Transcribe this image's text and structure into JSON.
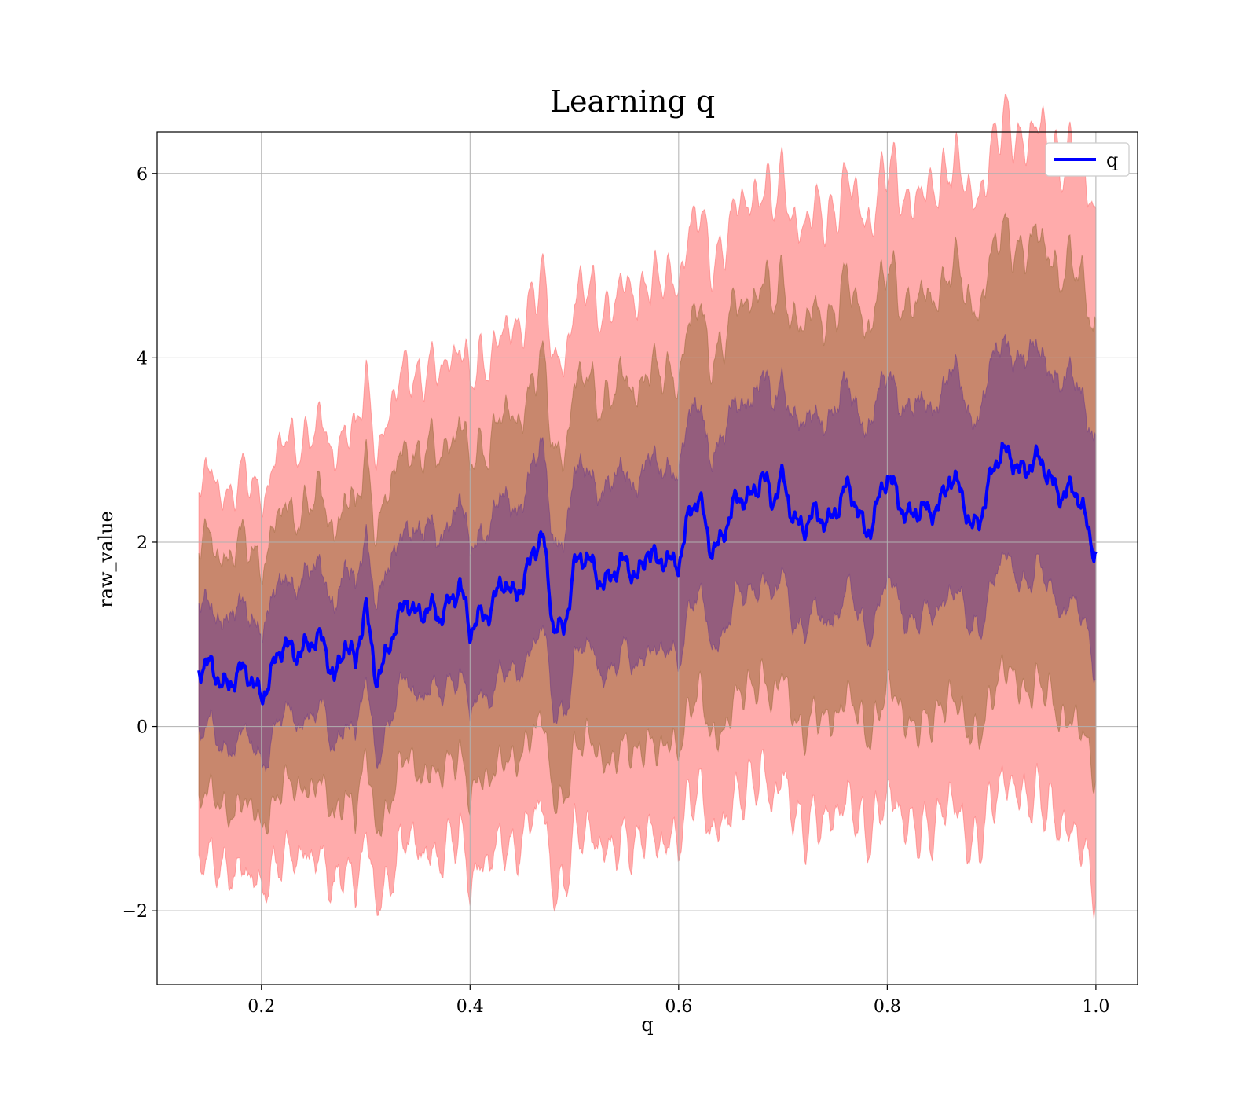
{
  "chart_data": {
    "type": "area",
    "title": "Learning q",
    "xlabel": "q",
    "ylabel": "raw_value",
    "xlim": [
      0.1,
      1.04
    ],
    "ylim": [
      -2.8,
      6.45
    ],
    "xticks": [
      0.2,
      0.4,
      0.6,
      0.8,
      1.0
    ],
    "xtick_labels": [
      "0.2",
      "0.4",
      "0.6",
      "0.8",
      "1.0"
    ],
    "yticks": [
      -2,
      0,
      2,
      4,
      6
    ],
    "ytick_labels": [
      "−2",
      "0",
      "2",
      "4",
      "6"
    ],
    "grid": true,
    "legend": {
      "placement": "top-right",
      "entries": [
        "q"
      ]
    },
    "colors": {
      "mean_line": "#0000ff",
      "band_outer": "#ff6666",
      "band_middle": "#9a6a3a",
      "band_inner": "#6a3a8a"
    },
    "bands": [
      {
        "sigma": 3,
        "color_key": "band_outer",
        "opacity": 0.55
      },
      {
        "sigma": 2,
        "color_key": "band_middle",
        "opacity": 0.55
      },
      {
        "sigma": 1,
        "color_key": "band_inner",
        "opacity": 0.55
      }
    ],
    "series": [
      {
        "name": "q",
        "x": [
          0.14,
          0.16,
          0.18,
          0.2,
          0.22,
          0.24,
          0.26,
          0.27,
          0.28,
          0.29,
          0.3,
          0.31,
          0.32,
          0.33,
          0.34,
          0.35,
          0.36,
          0.37,
          0.38,
          0.39,
          0.4,
          0.41,
          0.42,
          0.43,
          0.44,
          0.45,
          0.46,
          0.47,
          0.48,
          0.49,
          0.5,
          0.52,
          0.54,
          0.56,
          0.57,
          0.58,
          0.6,
          0.61,
          0.62,
          0.63,
          0.64,
          0.66,
          0.68,
          0.69,
          0.7,
          0.72,
          0.74,
          0.76,
          0.78,
          0.8,
          0.82,
          0.84,
          0.86,
          0.88,
          0.9,
          0.92,
          0.94,
          0.96,
          0.98,
          1.0
        ],
        "mean": [
          0.55,
          0.58,
          0.5,
          0.45,
          0.75,
          0.95,
          0.8,
          0.6,
          1.0,
          0.55,
          1.3,
          0.65,
          0.75,
          1.0,
          1.45,
          1.3,
          1.2,
          1.1,
          1.45,
          1.6,
          0.9,
          1.2,
          1.4,
          1.55,
          1.3,
          1.6,
          2.0,
          1.95,
          1.0,
          1.2,
          1.75,
          1.7,
          1.65,
          1.7,
          2.0,
          1.65,
          1.9,
          2.3,
          2.35,
          2.0,
          2.1,
          2.4,
          2.8,
          2.3,
          2.7,
          2.1,
          2.3,
          2.5,
          2.2,
          2.6,
          2.4,
          2.2,
          2.8,
          2.1,
          2.75,
          2.95,
          2.8,
          2.7,
          2.45,
          2.0
        ],
        "sigma": [
          0.68,
          0.69,
          0.7,
          0.72,
          0.74,
          0.76,
          0.78,
          0.79,
          0.8,
          0.81,
          0.82,
          0.83,
          0.84,
          0.84,
          0.85,
          0.86,
          0.87,
          0.88,
          0.88,
          0.89,
          0.9,
          0.91,
          0.92,
          0.92,
          0.93,
          0.94,
          0.95,
          0.95,
          0.96,
          0.96,
          0.97,
          0.98,
          0.99,
          1.0,
          1.0,
          1.01,
          1.02,
          1.03,
          1.03,
          1.04,
          1.05,
          1.06,
          1.07,
          1.07,
          1.08,
          1.09,
          1.1,
          1.11,
          1.12,
          1.13,
          1.14,
          1.15,
          1.16,
          1.17,
          1.18,
          1.19,
          1.2,
          1.21,
          1.22,
          1.23
        ]
      }
    ]
  }
}
